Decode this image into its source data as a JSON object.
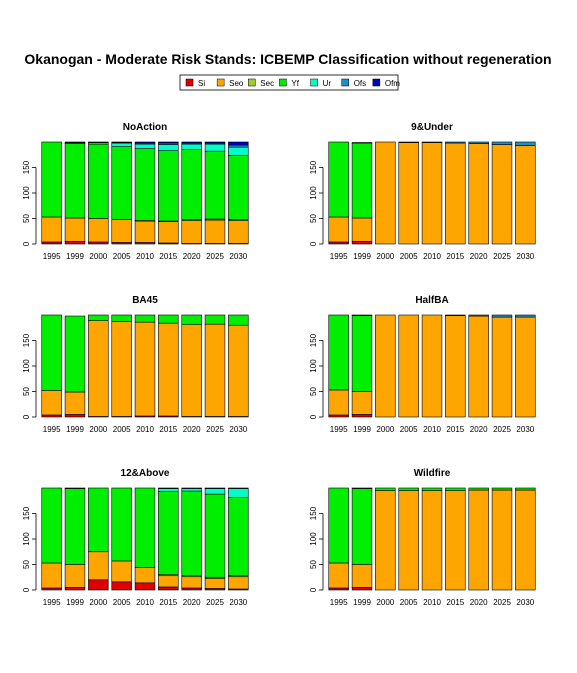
{
  "title": "Okanogan  - Moderate Risk Stands: ICBEMP Classification without regeneration",
  "legend": [
    {
      "label": "Si",
      "color": "#e00000"
    },
    {
      "label": "Seo",
      "color": "#ffa500"
    },
    {
      "label": "Sec",
      "color": "#9acd32"
    },
    {
      "label": "Yf",
      "color": "#00ee00"
    },
    {
      "label": "Ur",
      "color": "#00ffc8"
    },
    {
      "label": "Ofs",
      "color": "#1e90c8"
    },
    {
      "label": "Ofm",
      "color": "#0000cd"
    }
  ],
  "chart_data": [
    {
      "type": "bar",
      "stacked": true,
      "title": "NoAction",
      "categories": [
        "1995",
        "1999",
        "2000",
        "2005",
        "2010",
        "2015",
        "2020",
        "2025",
        "2030"
      ],
      "ylim": [
        0,
        200
      ],
      "yticks": [
        0,
        50,
        100,
        150
      ],
      "series": [
        {
          "name": "Si",
          "values": [
            4,
            5,
            4,
            3,
            3,
            2,
            1,
            1,
            1
          ]
        },
        {
          "name": "Seo",
          "values": [
            49,
            46,
            46,
            45,
            42,
            42,
            45,
            46,
            45
          ]
        },
        {
          "name": "Sec",
          "values": [
            0,
            0,
            0,
            0,
            1,
            1,
            2,
            2,
            2
          ]
        },
        {
          "name": "Yf",
          "values": [
            147,
            146,
            146,
            143,
            141,
            138,
            137,
            133,
            126
          ]
        },
        {
          "name": "Ur",
          "values": [
            0,
            2,
            3,
            7,
            9,
            12,
            11,
            14,
            16
          ]
        },
        {
          "name": "Ofs",
          "values": [
            0,
            1,
            1,
            1,
            2,
            3,
            2,
            2,
            4
          ]
        },
        {
          "name": "Ofm",
          "values": [
            0,
            0,
            0,
            1,
            2,
            2,
            2,
            2,
            6
          ]
        }
      ]
    },
    {
      "type": "bar",
      "stacked": true,
      "title": "9&Under",
      "categories": [
        "1995",
        "1999",
        "2000",
        "2005",
        "2010",
        "2015",
        "2020",
        "2025",
        "2030"
      ],
      "ylim": [
        0,
        200
      ],
      "yticks": [
        0,
        50,
        100,
        150
      ],
      "series": [
        {
          "name": "Si",
          "values": [
            4,
            5,
            0,
            0,
            0,
            0,
            0,
            0,
            0
          ]
        },
        {
          "name": "Seo",
          "values": [
            49,
            46,
            200,
            199,
            199,
            198,
            197,
            195,
            193
          ]
        },
        {
          "name": "Sec",
          "values": [
            0,
            0,
            0,
            0,
            0,
            0,
            0,
            0,
            0
          ]
        },
        {
          "name": "Yf",
          "values": [
            147,
            147,
            0,
            0,
            0,
            0,
            0,
            0,
            0
          ]
        },
        {
          "name": "Ur",
          "values": [
            0,
            0,
            0,
            0,
            0,
            0,
            0,
            0,
            0
          ]
        },
        {
          "name": "Ofs",
          "values": [
            0,
            1,
            0,
            1,
            1,
            2,
            3,
            5,
            7
          ]
        },
        {
          "name": "Ofm",
          "values": [
            0,
            0,
            0,
            0,
            0,
            0,
            0,
            0,
            0
          ]
        }
      ]
    },
    {
      "type": "bar",
      "stacked": true,
      "title": "BA45",
      "categories": [
        "1995",
        "1999",
        "2000",
        "2005",
        "2010",
        "2015",
        "2020",
        "2025",
        "2030"
      ],
      "ylim": [
        0,
        200
      ],
      "yticks": [
        0,
        50,
        100,
        150
      ],
      "series": [
        {
          "name": "Si",
          "values": [
            4,
            5,
            1,
            1,
            2,
            2,
            1,
            1,
            1
          ]
        },
        {
          "name": "Seo",
          "values": [
            48,
            44,
            188,
            186,
            184,
            182,
            180,
            181,
            179
          ]
        },
        {
          "name": "Sec",
          "values": [
            0,
            0,
            0,
            0,
            0,
            0,
            0,
            0,
            0
          ]
        },
        {
          "name": "Yf",
          "values": [
            148,
            149,
            11,
            13,
            14,
            16,
            19,
            18,
            20
          ]
        },
        {
          "name": "Ur",
          "values": [
            0,
            0,
            0,
            0,
            0,
            0,
            0,
            0,
            0
          ]
        },
        {
          "name": "Ofs",
          "values": [
            0,
            0,
            0,
            0,
            0,
            0,
            0,
            0,
            0
          ]
        },
        {
          "name": "Ofm",
          "values": [
            0,
            0,
            0,
            0,
            0,
            0,
            0,
            0,
            0
          ]
        }
      ]
    },
    {
      "type": "bar",
      "stacked": true,
      "title": "HalfBA",
      "categories": [
        "1995",
        "1999",
        "2000",
        "2005",
        "2010",
        "2015",
        "2020",
        "2025",
        "2030"
      ],
      "ylim": [
        0,
        200
      ],
      "yticks": [
        0,
        50,
        100,
        150
      ],
      "series": [
        {
          "name": "Si",
          "values": [
            4,
            5,
            0,
            0,
            0,
            0,
            0,
            0,
            0
          ]
        },
        {
          "name": "Seo",
          "values": [
            49,
            45,
            200,
            200,
            200,
            199,
            198,
            196,
            196
          ]
        },
        {
          "name": "Sec",
          "values": [
            0,
            0,
            0,
            0,
            0,
            0,
            0,
            0,
            0
          ]
        },
        {
          "name": "Yf",
          "values": [
            147,
            149,
            0,
            0,
            0,
            0,
            0,
            0,
            0
          ]
        },
        {
          "name": "Ur",
          "values": [
            0,
            0,
            0,
            0,
            0,
            0,
            0,
            0,
            0
          ]
        },
        {
          "name": "Ofs",
          "values": [
            0,
            1,
            0,
            0,
            0,
            1,
            2,
            4,
            4
          ]
        },
        {
          "name": "Ofm",
          "values": [
            0,
            0,
            0,
            0,
            0,
            0,
            0,
            0,
            0
          ]
        }
      ]
    },
    {
      "type": "bar",
      "stacked": true,
      "title": "12&Above",
      "categories": [
        "1995",
        "1999",
        "2000",
        "2005",
        "2010",
        "2015",
        "2020",
        "2025",
        "2030"
      ],
      "ylim": [
        0,
        200
      ],
      "yticks": [
        0,
        50,
        100,
        150
      ],
      "series": [
        {
          "name": "Si",
          "values": [
            4,
            5,
            20,
            16,
            14,
            6,
            4,
            3,
            2
          ]
        },
        {
          "name": "Seo",
          "values": [
            49,
            45,
            55,
            41,
            30,
            22,
            22,
            20,
            24
          ]
        },
        {
          "name": "Sec",
          "values": [
            0,
            0,
            0,
            0,
            0,
            2,
            2,
            2,
            2
          ]
        },
        {
          "name": "Yf",
          "values": [
            147,
            149,
            125,
            143,
            156,
            163,
            166,
            163,
            153
          ]
        },
        {
          "name": "Ur",
          "values": [
            0,
            0,
            0,
            0,
            0,
            6,
            5,
            11,
            18
          ]
        },
        {
          "name": "Ofs",
          "values": [
            0,
            1,
            0,
            0,
            0,
            1,
            1,
            1,
            1
          ]
        },
        {
          "name": "Ofm",
          "values": [
            0,
            0,
            0,
            0,
            0,
            0,
            0,
            0,
            0
          ]
        }
      ]
    },
    {
      "type": "bar",
      "stacked": true,
      "title": "Wildfire",
      "categories": [
        "1995",
        "1999",
        "2000",
        "2005",
        "2010",
        "2015",
        "2020",
        "2025",
        "2030"
      ],
      "ylim": [
        0,
        200
      ],
      "yticks": [
        0,
        50,
        100,
        150
      ],
      "series": [
        {
          "name": "Si",
          "values": [
            4,
            5,
            0,
            0,
            0,
            0,
            0,
            0,
            0
          ]
        },
        {
          "name": "Seo",
          "values": [
            49,
            45,
            195,
            195,
            195,
            195,
            196,
            196,
            196
          ]
        },
        {
          "name": "Sec",
          "values": [
            0,
            0,
            0,
            0,
            0,
            0,
            0,
            0,
            0
          ]
        },
        {
          "name": "Yf",
          "values": [
            147,
            149,
            5,
            5,
            5,
            5,
            4,
            4,
            4
          ]
        },
        {
          "name": "Ur",
          "values": [
            0,
            0,
            0,
            0,
            0,
            0,
            0,
            0,
            0
          ]
        },
        {
          "name": "Ofs",
          "values": [
            0,
            1,
            0,
            0,
            0,
            0,
            0,
            0,
            0
          ]
        },
        {
          "name": "Ofm",
          "values": [
            0,
            0,
            0,
            0,
            0,
            0,
            0,
            0,
            0
          ]
        }
      ]
    }
  ]
}
